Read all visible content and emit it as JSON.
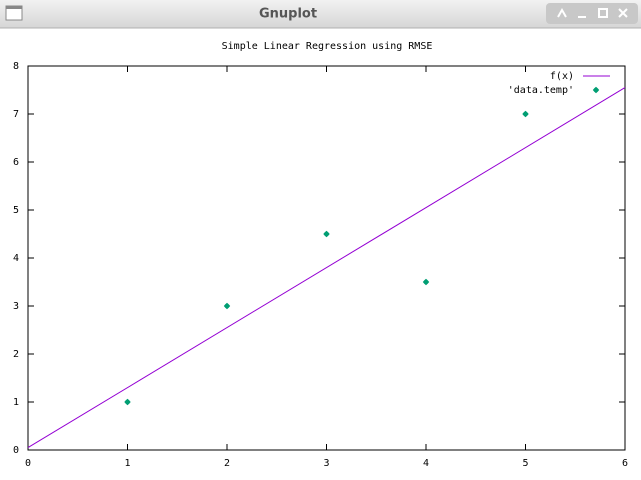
{
  "window": {
    "title": "Gnuplot"
  },
  "chart_data": {
    "type": "scatter",
    "title": "Simple Linear Regression using RMSE",
    "series": [
      {
        "name": "f(x)",
        "type": "line",
        "color": "#9400d3",
        "x": [
          0,
          6
        ],
        "values": [
          0.05,
          7.55
        ]
      },
      {
        "name": "'data.temp'",
        "type": "scatter",
        "color": "#009e73",
        "x": [
          1,
          2,
          3,
          4,
          5
        ],
        "values": [
          1,
          3,
          4.5,
          3.5,
          7
        ]
      }
    ],
    "xlim": [
      0,
      6
    ],
    "xticks": [
      0,
      1,
      2,
      3,
      4,
      5,
      6
    ],
    "ylim": [
      0,
      8
    ],
    "yticks": [
      0,
      1,
      2,
      3,
      4,
      5,
      6,
      7,
      8
    ],
    "grid": false,
    "legend": "top right"
  }
}
